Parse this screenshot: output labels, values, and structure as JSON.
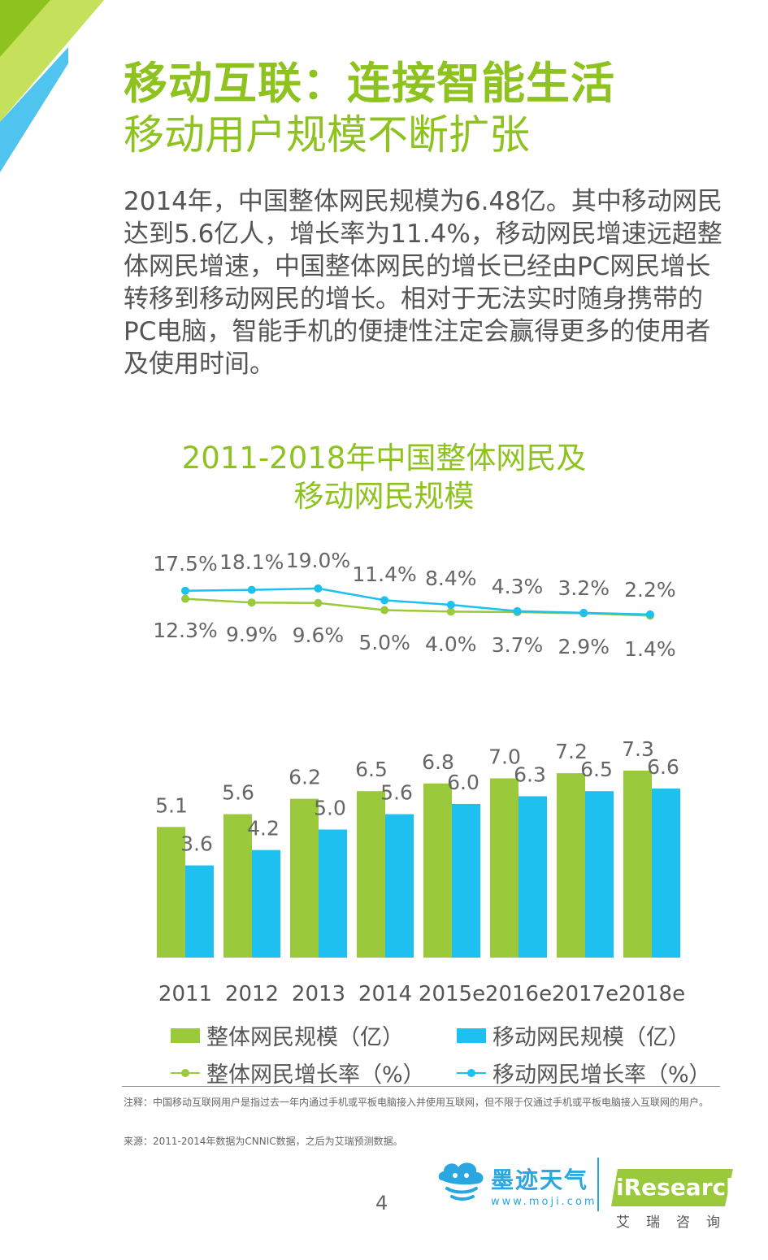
{
  "header": {
    "title_line1": "移动互联：连接智能生活",
    "title_line2": "移动用户规模不断扩张"
  },
  "body_text": "2014年，中国整体网民规模为6.48亿。其中移动网民达到5.6亿人，增长率为11.4%，移动网民增速远超整体网民增速，中国整体网民的增长已经由PC网民增长转移到移动网民的增长。相对于无法实时随身携带的PC电脑，智能手机的便捷性注定会赢得更多的使用者及使用时间。",
  "chart_data": {
    "type": "bar",
    "title_line1": "2011-2018年中国整体网民及",
    "title_line2": "移动网民规模",
    "categories": [
      "2011",
      "2012",
      "2013",
      "2014",
      "2015e",
      "2016e",
      "2017e",
      "2018e"
    ],
    "series": [
      {
        "name": "整体网民规模（亿）",
        "type": "bar",
        "color": "#9ac93c",
        "values": [
          5.1,
          5.6,
          6.2,
          6.5,
          6.8,
          7.0,
          7.2,
          7.3
        ],
        "labels": [
          "5.1",
          "5.6",
          "6.2",
          "6.5",
          "6.8",
          "7.0",
          "7.2",
          "7.3"
        ]
      },
      {
        "name": "移动网民规模（亿）",
        "type": "bar",
        "color": "#1dc0ee",
        "values": [
          3.6,
          4.2,
          5.0,
          5.6,
          6.0,
          6.3,
          6.5,
          6.6
        ],
        "labels": [
          "3.6",
          "4.2",
          "5.0",
          "5.6",
          "6.0",
          "6.3",
          "6.5",
          "6.6"
        ]
      },
      {
        "name": "整体网民增长率（%）",
        "type": "line",
        "color": "#9ac93c",
        "values": [
          12.3,
          9.9,
          9.6,
          5.0,
          4.0,
          3.7,
          2.9,
          1.4
        ],
        "labels": [
          "12.3%",
          "9.9%",
          "9.6%",
          "5.0%",
          "4.0%",
          "3.7%",
          "2.9%",
          "1.4%"
        ]
      },
      {
        "name": "移动网民增长率（%）",
        "type": "line",
        "color": "#1dc0ee",
        "values": [
          17.5,
          18.1,
          19.0,
          11.4,
          8.4,
          4.3,
          3.2,
          2.2
        ],
        "labels": [
          "17.5%",
          "18.1%",
          "19.0%",
          "11.4%",
          "8.4%",
          "4.3%",
          "3.2%",
          "2.2%"
        ]
      }
    ],
    "legend_position": "bottom",
    "grid": false
  },
  "notes": {
    "note": "注释：中国移动互联网用户是指过去一年内通过手机或平板电脑接入并使用互联网，但不限于仅通过手机或平板电脑接入互联网的用户。",
    "source": "来源：2011-2014年数据为CNNIC数据，之后为艾瑞预测数据。"
  },
  "footer": {
    "page_number": "4",
    "moji_name": "墨迹天气",
    "moji_url": "www.moji.com",
    "iresearch_name": "iResearch",
    "iresearch_cn": "艾瑞咨询"
  },
  "colors": {
    "brand_green": "#8dc21f",
    "bar_green": "#9ac93c",
    "bar_blue": "#1dc0ee",
    "brand_blue": "#2aa6e0"
  }
}
